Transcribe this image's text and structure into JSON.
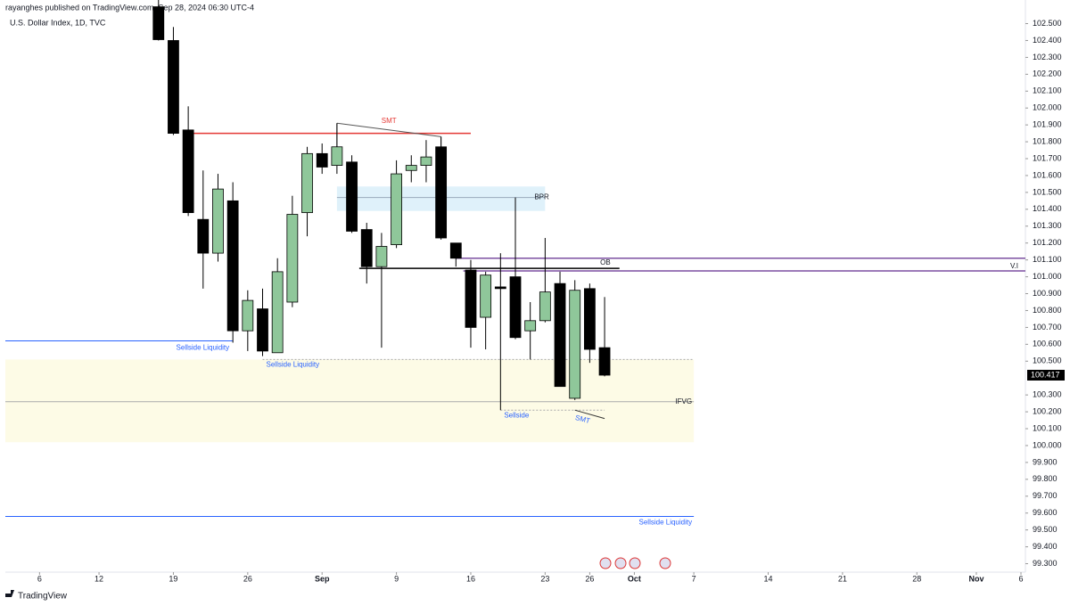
{
  "header": {
    "byline": "rayanghes published on TradingView.com, Sep 28, 2024 06:30 UTC-4",
    "symbol": "U.S. Dollar Index, 1D, TVC"
  },
  "footer": {
    "brand": "TradingView"
  },
  "chart_data": {
    "type": "candlestick",
    "up_color": "#8fc79a",
    "down_color": "#000000",
    "x": [
      8,
      9,
      10,
      11,
      12,
      13,
      14,
      15,
      16,
      17,
      18,
      19,
      20,
      21,
      22,
      23,
      24,
      25,
      26,
      27,
      28,
      29,
      30,
      31,
      32,
      33,
      34,
      35,
      36,
      37,
      38
    ],
    "open": [
      102.6,
      102.4,
      101.87,
      101.34,
      101.14,
      101.45,
      100.68,
      100.81,
      100.55,
      100.85,
      101.38,
      101.73,
      101.66,
      101.68,
      101.28,
      101.06,
      101.19,
      101.63,
      101.66,
      101.77,
      101.2,
      101.04,
      100.76,
      100.94,
      101.0,
      100.68,
      100.74,
      100.96,
      100.28,
      100.93,
      100.58
    ],
    "high": [
      102.7,
      102.48,
      102.01,
      101.63,
      101.61,
      101.56,
      100.92,
      100.93,
      101.11,
      101.48,
      101.77,
      101.79,
      101.91,
      101.72,
      101.32,
      101.26,
      101.69,
      101.72,
      101.81,
      101.83,
      101.2,
      101.1,
      101.03,
      101.14,
      101.47,
      100.85,
      101.23,
      101.03,
      100.98,
      100.96,
      100.88
    ],
    "low": [
      102.4,
      101.84,
      101.36,
      100.93,
      101.09,
      100.61,
      100.56,
      100.53,
      100.55,
      100.82,
      101.24,
      101.61,
      101.61,
      101.26,
      100.96,
      100.58,
      101.17,
      101.56,
      101.56,
      101.22,
      101.06,
      100.58,
      100.57,
      100.21,
      100.63,
      100.51,
      100.73,
      100.35,
      100.27,
      100.49,
      100.41
    ],
    "close": [
      102.405,
      101.85,
      101.38,
      101.14,
      101.52,
      100.68,
      100.86,
      100.56,
      101.03,
      101.37,
      101.73,
      101.65,
      101.77,
      101.27,
      101.06,
      101.18,
      101.61,
      101.66,
      101.71,
      101.23,
      101.11,
      100.7,
      101.01,
      100.93,
      100.64,
      100.74,
      100.91,
      100.35,
      100.92,
      100.57,
      100.417
    ],
    "xlim": [
      -2.3,
      66.3
    ],
    "ylim": [
      99.25,
      102.64
    ],
    "xticks": [
      {
        "value": 0,
        "label": "6"
      },
      {
        "value": 4,
        "label": "12"
      },
      {
        "value": 9,
        "label": "19"
      },
      {
        "value": 14,
        "label": "26"
      },
      {
        "value": 19,
        "label": "Sep"
      },
      {
        "value": 24,
        "label": "9"
      },
      {
        "value": 29,
        "label": "16"
      },
      {
        "value": 34,
        "label": "23"
      },
      {
        "value": 37,
        "label": "26"
      },
      {
        "value": 40,
        "label": "Oct"
      },
      {
        "value": 44,
        "label": "7"
      },
      {
        "value": 49,
        "label": "14"
      },
      {
        "value": 54,
        "label": "21"
      },
      {
        "value": 59,
        "label": "28"
      },
      {
        "value": 63,
        "label": "Nov"
      },
      {
        "value": 66,
        "label": "6"
      }
    ],
    "yticks": [
      {
        "value": 99.3,
        "label": "99.300"
      },
      {
        "value": 99.4,
        "label": "99.400"
      },
      {
        "value": 99.5,
        "label": "99.500"
      },
      {
        "value": 99.6,
        "label": "99.600"
      },
      {
        "value": 99.7,
        "label": "99.700"
      },
      {
        "value": 99.8,
        "label": "99.800"
      },
      {
        "value": 99.9,
        "label": "99.900"
      },
      {
        "value": 100.0,
        "label": "100.000"
      },
      {
        "value": 100.1,
        "label": "100.100"
      },
      {
        "value": 100.2,
        "label": "100.200"
      },
      {
        "value": 100.3,
        "label": "100.300"
      },
      {
        "value": 100.5,
        "label": "100.500"
      },
      {
        "value": 100.6,
        "label": "100.600"
      },
      {
        "value": 100.7,
        "label": "100.700"
      },
      {
        "value": 100.8,
        "label": "100.800"
      },
      {
        "value": 100.9,
        "label": "100.900"
      },
      {
        "value": 101.0,
        "label": "101.000"
      },
      {
        "value": 101.1,
        "label": "101.100"
      },
      {
        "value": 101.2,
        "label": "101.200"
      },
      {
        "value": 101.3,
        "label": "101.300"
      },
      {
        "value": 101.4,
        "label": "101.400"
      },
      {
        "value": 101.5,
        "label": "101.500"
      },
      {
        "value": 101.6,
        "label": "101.600"
      },
      {
        "value": 101.7,
        "label": "101.700"
      },
      {
        "value": 101.8,
        "label": "101.800"
      },
      {
        "value": 101.9,
        "label": "101.900"
      },
      {
        "value": 102.0,
        "label": "102.000"
      },
      {
        "value": 102.1,
        "label": "102.100"
      },
      {
        "value": 102.2,
        "label": "102.200"
      },
      {
        "value": 102.3,
        "label": "102.300"
      },
      {
        "value": 102.4,
        "label": "102.400"
      },
      {
        "value": 102.5,
        "label": "102.500"
      }
    ],
    "annotations": [
      {
        "kind": "box",
        "x": [
          -2.3,
          44
        ],
        "y": [
          100.02,
          100.51
        ],
        "color": "#fdfbe6"
      },
      {
        "kind": "box",
        "x": [
          20,
          34
        ],
        "y": [
          101.39,
          101.535
        ],
        "color": "#dff1fa"
      },
      {
        "kind": "line",
        "x": [
          20,
          34
        ],
        "y": [
          101.47,
          101.47
        ],
        "color": "#9ab",
        "label": "BPR"
      },
      {
        "kind": "line",
        "x": [
          10,
          29
        ],
        "y": [
          101.85,
          101.85
        ],
        "color": "#e53935"
      },
      {
        "kind": "line",
        "x": [
          20,
          27
        ],
        "y": [
          101.91,
          101.83
        ],
        "color": "#555",
        "label": "SMT",
        "label_color": "#e53935"
      },
      {
        "kind": "line",
        "x": [
          20,
          20
        ],
        "y": [
          101.91,
          101.77
        ],
        "color": "#555"
      },
      {
        "kind": "line",
        "x": [
          27,
          27
        ],
        "y": [
          101.83,
          101.77
        ],
        "color": "#555"
      },
      {
        "kind": "line",
        "x": [
          28,
          66.3
        ],
        "y": [
          101.11,
          101.11
        ],
        "color": "#7b4fa0"
      },
      {
        "kind": "line",
        "x": [
          21.5,
          39
        ],
        "y": [
          101.05,
          101.05
        ],
        "color": "#000",
        "label": "OB"
      },
      {
        "kind": "line",
        "x": [
          28.5,
          66.3
        ],
        "y": [
          101.035,
          101.035
        ],
        "color": "#7b4fa0",
        "label": "V.I"
      },
      {
        "kind": "line",
        "x": [
          -2.3,
          13
        ],
        "y": [
          100.62,
          100.62
        ],
        "color": "#2962ff",
        "label": "Sellside Liquidity",
        "label_color": "#2962ff"
      },
      {
        "kind": "dotted",
        "x": [
          15,
          44
        ],
        "y": [
          100.51,
          100.51
        ],
        "color": "#aaa",
        "label": "Sellside Liquidity",
        "label_color": "#2962ff"
      },
      {
        "kind": "line",
        "x": [
          -2.3,
          44
        ],
        "y": [
          100.26,
          100.26
        ],
        "color": "#aaa",
        "label": "IFVG"
      },
      {
        "kind": "dotted",
        "x": [
          31,
          38
        ],
        "y": [
          100.21,
          100.21
        ],
        "color": "#aaa",
        "label": "Sellside",
        "label_color": "#2962ff"
      },
      {
        "kind": "line",
        "x": [
          36,
          38
        ],
        "y": [
          100.21,
          100.16
        ],
        "color": "#333",
        "label": "SMT",
        "label_color": "#2962ff"
      },
      {
        "kind": "line",
        "x": [
          -2.3,
          44
        ],
        "y": [
          99.58,
          99.58
        ],
        "color": "#2962ff",
        "label": "Sellside Liquidity",
        "label_color": "#2962ff"
      }
    ]
  }
}
